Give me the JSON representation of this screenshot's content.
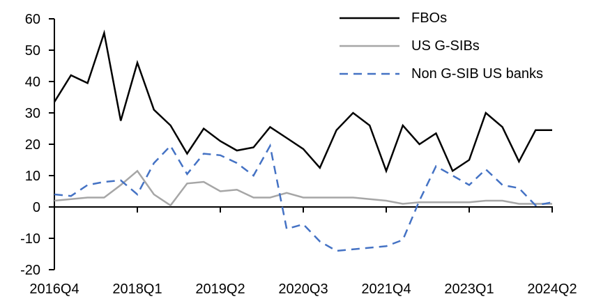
{
  "chart_data": {
    "type": "line",
    "grid": false,
    "legend_position": "top-right",
    "ylim": [
      -20,
      60
    ],
    "y_ticks": [
      60,
      50,
      40,
      30,
      20,
      10,
      0,
      -10,
      -20
    ],
    "x_tick_labels": [
      "2016Q4",
      "2018Q1",
      "2019Q2",
      "2020Q3",
      "2021Q4",
      "2023Q1",
      "2024Q2"
    ],
    "x_categories": [
      "2016Q4",
      "2017Q1",
      "2017Q2",
      "2017Q3",
      "2017Q4",
      "2018Q1",
      "2018Q2",
      "2018Q3",
      "2018Q4",
      "2019Q1",
      "2019Q2",
      "2019Q3",
      "2019Q4",
      "2020Q1",
      "2020Q2",
      "2020Q3",
      "2020Q4",
      "2021Q1",
      "2021Q2",
      "2021Q3",
      "2021Q4",
      "2022Q1",
      "2022Q2",
      "2022Q3",
      "2022Q4",
      "2023Q1",
      "2023Q2",
      "2023Q3",
      "2023Q4",
      "2024Q1",
      "2024Q2"
    ],
    "series": [
      {
        "name": "FBOs",
        "color": "#000000",
        "style": "solid",
        "values": [
          33.5,
          42,
          39.5,
          55.5,
          27.5,
          46,
          31,
          26,
          17,
          25,
          21,
          18,
          19,
          25.5,
          22,
          18.5,
          12.5,
          24.5,
          30,
          26,
          11.5,
          26,
          20,
          23.5,
          11.5,
          15,
          30,
          25.5,
          14.5,
          24.5,
          24.5
        ]
      },
      {
        "name": "US G-SIBs",
        "color": "#A6A6A6",
        "style": "solid",
        "values": [
          2,
          2.5,
          3,
          3,
          7,
          11.5,
          4,
          0.5,
          7.5,
          8,
          5,
          5.5,
          3,
          3,
          4.5,
          3,
          3,
          3,
          3,
          2.5,
          2,
          1,
          1.5,
          1.5,
          1.5,
          1.5,
          2,
          2,
          1,
          1,
          1
        ]
      },
      {
        "name": "Non G-SIB US banks",
        "color": "#4472C4",
        "style": "dashed",
        "values": [
          4,
          3.5,
          7,
          8,
          8.5,
          4,
          14,
          19.5,
          10.5,
          17,
          16.5,
          14,
          10,
          19.5,
          -7,
          -5.5,
          -11,
          -14,
          -13.5,
          -13,
          -12.5,
          -10.5,
          2,
          13,
          10,
          7,
          12,
          7,
          6,
          0.5,
          1.5
        ]
      }
    ],
    "axis_color": "#000000"
  }
}
